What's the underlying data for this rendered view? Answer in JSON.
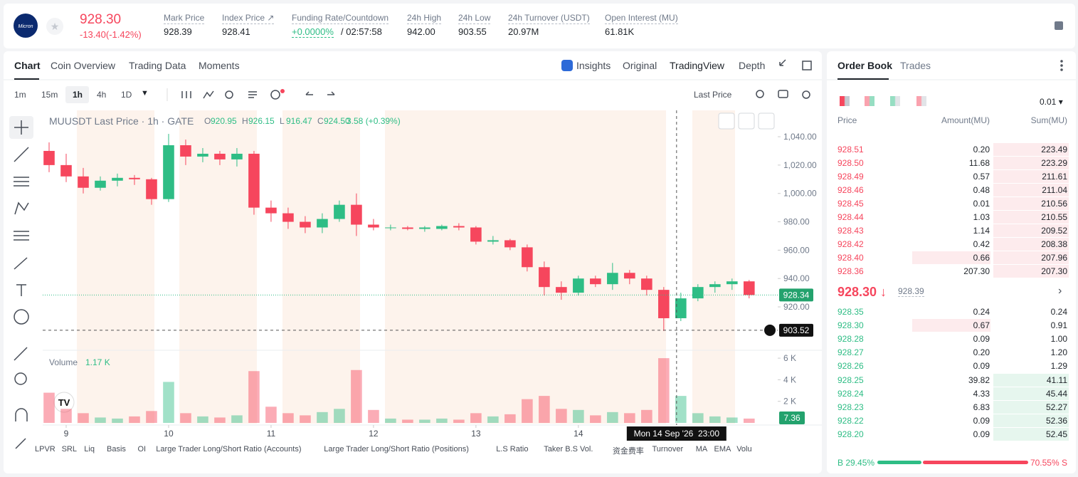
{
  "header": {
    "logo": "Micron",
    "price": "928.30",
    "change": "-13.40(-1.42%)",
    "stats": [
      {
        "label": "Mark Price",
        "value": "928.39"
      },
      {
        "label": "Index Price ↗",
        "value": "928.41"
      },
      {
        "label": "Funding Rate/Countdown",
        "value": "+0.0000%",
        "extra": "/ 02:57:58"
      },
      {
        "label": "24h High",
        "value": "942.00"
      },
      {
        "label": "24h Low",
        "value": "903.55"
      },
      {
        "label": "24h Turnover (USDT)",
        "value": "20.97M"
      },
      {
        "label": "Open Interest (MU)",
        "value": "61.81K"
      }
    ]
  },
  "chart_tabs": [
    "Chart",
    "Coin Overview",
    "Trading Data",
    "Moments"
  ],
  "view_tabs": [
    "Insights",
    "Original",
    "TradingView",
    "Depth"
  ],
  "intervals": [
    "1m",
    "15m",
    "1h",
    "4h",
    "1D"
  ],
  "price_source": "Last Price",
  "indicators": [
    "LPVR",
    "SRL",
    "Liq",
    "Basis",
    "OI",
    "Large Trader Long/Short Ratio (Accounts)",
    "Large Trader Long/Short Ratio (Positions)",
    "L.S Ratio",
    "Taker B.S Vol.",
    "资金费率",
    "Turnover",
    "MA",
    "EMA",
    "Volu"
  ],
  "chart_data": {
    "type": "candlestick",
    "legend_title": "MUUSDT Last Price · 1h · GATE",
    "ohlc": [
      {
        "label": "O",
        "value": "920.95"
      },
      {
        "label": "H",
        "value": "926.15"
      },
      {
        "label": "L",
        "value": "916.47"
      },
      {
        "label": "C",
        "value": "924.50"
      }
    ],
    "change": "3.58 (+0.39%)",
    "up_color": "#2ebd85",
    "down_color": "#f6465d",
    "x": [
      -4,
      0,
      4,
      8,
      12,
      16,
      20,
      24,
      28,
      32,
      36,
      40,
      44,
      48,
      52,
      56,
      60,
      64,
      68,
      72,
      76,
      80,
      84,
      88,
      92,
      96,
      100,
      104,
      108,
      112,
      116,
      120,
      124,
      128,
      132,
      136,
      140,
      144,
      148,
      152,
      156,
      160
    ],
    "open": [
      1030,
      1020,
      1012,
      1004,
      1009,
      1011,
      1010,
      996,
      1034,
      1026,
      1028,
      1024,
      1028,
      990,
      986,
      980,
      976,
      982,
      992,
      978,
      976,
      976,
      975,
      975,
      977,
      976,
      966,
      967,
      962,
      948,
      934,
      930,
      940,
      936,
      944,
      940,
      932,
      912,
      926,
      934,
      936,
      938
    ],
    "high": [
      1036,
      1028,
      1018,
      1012,
      1014,
      1013,
      1011,
      1042,
      1038,
      1032,
      1030,
      1032,
      1030,
      995,
      990,
      984,
      986,
      995,
      1000,
      982,
      978,
      977,
      977,
      978,
      979,
      977,
      970,
      968,
      964,
      952,
      938,
      942,
      942,
      951,
      946,
      942,
      934,
      930,
      936,
      938,
      940,
      939
    ],
    "low": [
      1015,
      1008,
      1000,
      1002,
      1005,
      1006,
      992,
      994,
      1020,
      1022,
      1020,
      1019,
      985,
      980,
      975,
      972,
      972,
      980,
      970,
      974,
      974,
      974,
      973,
      974,
      974,
      964,
      964,
      960,
      945,
      928,
      925,
      928,
      934,
      932,
      936,
      928,
      903,
      910,
      924,
      930,
      932,
      926
    ],
    "close": [
      1020,
      1012,
      1004,
      1009,
      1011,
      1010,
      996,
      1034,
      1026,
      1028,
      1024,
      1028,
      990,
      986,
      980,
      976,
      982,
      992,
      978,
      976,
      976,
      975,
      976,
      977,
      976,
      966,
      967,
      962,
      948,
      934,
      930,
      940,
      936,
      944,
      940,
      932,
      912,
      926,
      934,
      936,
      938,
      928.34
    ],
    "volume": [
      2800,
      1300,
      900,
      500,
      400,
      600,
      1100,
      3800,
      900,
      600,
      500,
      700,
      4800,
      1500,
      900,
      700,
      1000,
      1300,
      4900,
      1200,
      400,
      300,
      300,
      400,
      300,
      900,
      600,
      800,
      2200,
      2500,
      1300,
      1200,
      700,
      1000,
      900,
      1200,
      6000,
      2500,
      900,
      600,
      500,
      400
    ],
    "xlim": [
      -5.5,
      166.7
    ],
    "xticks": [
      {
        "value": 0,
        "label": "9"
      },
      {
        "value": 24,
        "label": "10"
      },
      {
        "value": 48,
        "label": "11"
      },
      {
        "value": 72,
        "label": "12"
      },
      {
        "value": 96,
        "label": "13"
      },
      {
        "value": 120,
        "label": "14"
      }
    ],
    "ylim": [
      890.4,
      1058.6
    ],
    "yticks": [
      {
        "value": 920,
        "label": "920.00"
      },
      {
        "value": 940,
        "label": "940.00"
      },
      {
        "value": 960,
        "label": "960.00"
      },
      {
        "value": 980,
        "label": "980.00"
      },
      {
        "value": 1000,
        "label": "1,000.00"
      },
      {
        "value": 1020,
        "label": "1,020.00"
      },
      {
        "value": 1040,
        "label": "1,040.00"
      }
    ],
    "last_price": 928.34,
    "crosshair_price": 903.52,
    "crosshair_x": 143,
    "crosshair_time": "Mon 14 Sep '26  23:00",
    "volume_label": "Volume",
    "volume_value": "1.17 K",
    "last_volume": 7.36,
    "volume_ylim": [
      0,
      6600
    ],
    "volume_yticks": [
      {
        "value": 2000,
        "label": "2 K"
      },
      {
        "value": 4000,
        "label": "4 K"
      },
      {
        "value": 6000,
        "label": "6 K"
      }
    ]
  },
  "order_book": {
    "tabs": [
      "Order Book",
      "Trades"
    ],
    "precision": "0.01 ▾",
    "columns": [
      "Price",
      "Amount(MU)",
      "Sum(MU)"
    ],
    "asks": [
      [
        "928.51",
        "0.20",
        "223.49"
      ],
      [
        "928.50",
        "11.68",
        "223.29"
      ],
      [
        "928.49",
        "0.57",
        "211.61"
      ],
      [
        "928.46",
        "0.48",
        "211.04"
      ],
      [
        "928.45",
        "0.01",
        "210.56"
      ],
      [
        "928.44",
        "1.03",
        "210.55"
      ],
      [
        "928.43",
        "1.14",
        "209.52"
      ],
      [
        "928.42",
        "0.42",
        "208.38"
      ],
      [
        "928.40",
        "0.66",
        "207.96"
      ],
      [
        "928.36",
        "207.30",
        "207.30"
      ]
    ],
    "mid_price": "928.30 ↓",
    "mark_price": "928.39",
    "bids": [
      [
        "928.35",
        "0.24",
        "0.24"
      ],
      [
        "928.30",
        "0.67",
        "0.91"
      ],
      [
        "928.28",
        "0.09",
        "1.00"
      ],
      [
        "928.27",
        "0.20",
        "1.20"
      ],
      [
        "928.26",
        "0.09",
        "1.29"
      ],
      [
        "928.25",
        "39.82",
        "41.11"
      ],
      [
        "928.24",
        "4.33",
        "45.44"
      ],
      [
        "928.23",
        "6.83",
        "52.27"
      ],
      [
        "928.22",
        "0.09",
        "52.36"
      ],
      [
        "928.20",
        "0.09",
        "52.45"
      ]
    ],
    "buy_ratio": "B 29.45%",
    "sell_ratio": "70.55% S"
  }
}
